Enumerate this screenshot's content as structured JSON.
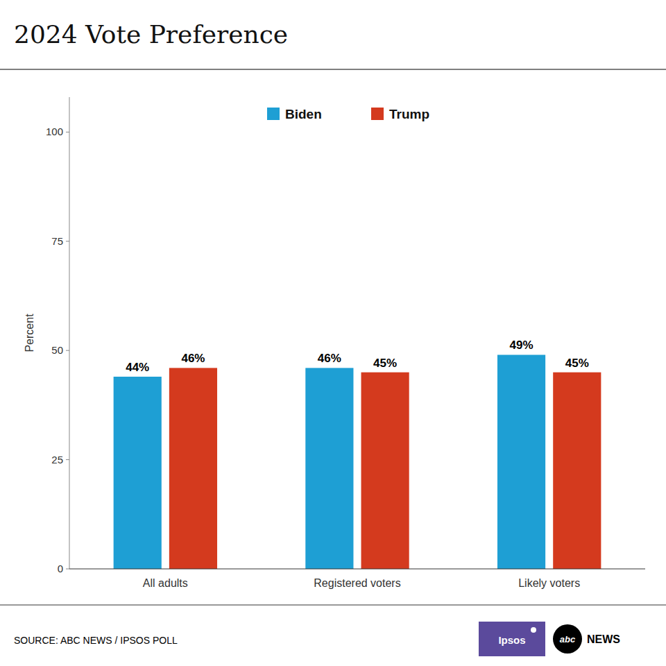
{
  "chart_data": {
    "type": "bar",
    "title": "2024 Vote Preference",
    "categories": [
      "All adults",
      "Registered voters",
      "Likely voters"
    ],
    "series": [
      {
        "name": "Biden",
        "color": "#1E9FD4",
        "values": [
          44,
          46,
          49
        ],
        "value_labels": [
          "44%",
          "46%",
          "49%"
        ]
      },
      {
        "name": "Trump",
        "color": "#D43A1E",
        "values": [
          46,
          45,
          45
        ],
        "value_labels": [
          "46%",
          "45%",
          "45%"
        ]
      }
    ],
    "ylabel": "Percent",
    "ylim": [
      0,
      108
    ],
    "yticks": [
      0,
      25,
      50,
      75,
      100
    ],
    "grid": false,
    "legend": "top",
    "data_labels": true,
    "annotations": [
      "SOURCE: ABC NEWS / IPSOS POLL",
      "Ipsos",
      "abc",
      "NEWS"
    ]
  }
}
